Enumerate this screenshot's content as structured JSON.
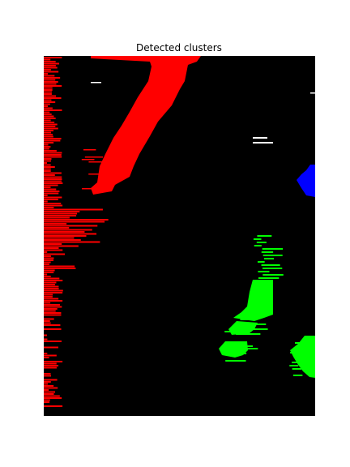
{
  "title": "Detected clusters"
}
